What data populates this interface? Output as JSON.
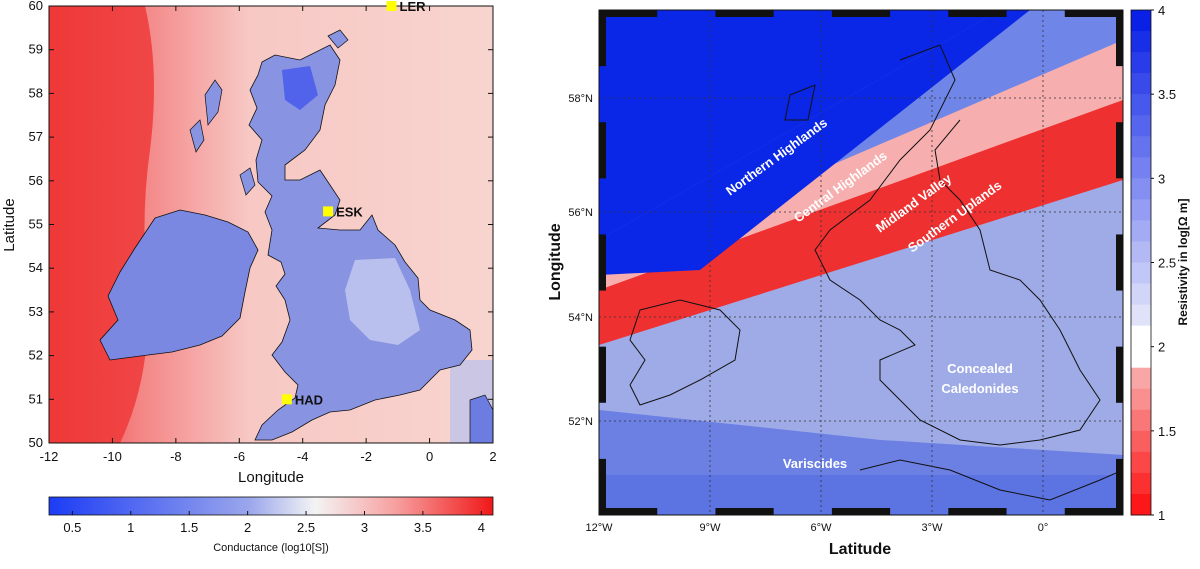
{
  "left_map": {
    "lat_ticks": [
      "60",
      "59",
      "58",
      "57",
      "56",
      "55",
      "54",
      "53",
      "52",
      "51",
      "50"
    ],
    "lon_ticks": [
      "-12",
      "-10",
      "-8",
      "-6",
      "-4",
      "-2",
      "0",
      "2"
    ],
    "ylabel": "Latitude",
    "xlabel": "Longitude",
    "stations": [
      {
        "name": "LER",
        "lon": -1.2,
        "lat": 60.0
      },
      {
        "name": "ESK",
        "lon": -3.2,
        "lat": 55.3
      },
      {
        "name": "HAD",
        "lon": -4.5,
        "lat": 51.0
      }
    ],
    "colorbar": {
      "ticks": [
        "0.5",
        "1",
        "1.5",
        "2",
        "2.5",
        "3",
        "3.5",
        "4"
      ],
      "range": [
        0.3,
        4.1
      ],
      "title": "Conductance (log10[S])",
      "low_color": "#1c3cf5",
      "mid_color": "#f4f4f4",
      "high_color": "#f01818"
    }
  },
  "right_map": {
    "x_ticks": [
      "12°W",
      "9°W",
      "6°W",
      "3°W",
      "0°"
    ],
    "y_ticks": [
      "58°N",
      "56°N",
      "54°N",
      "52°N"
    ],
    "xlabel": "Latitude",
    "ylabel": "Longitude",
    "regions": [
      "Northern Highlands",
      "Central Highlands",
      "Midland Valley",
      "Southern Uplands",
      "Concealed",
      "Caledonides",
      "Variscides"
    ],
    "colorbar": {
      "ticks": [
        "4",
        "3.5",
        "3",
        "2.5",
        "2",
        "1.5",
        "1"
      ],
      "range": [
        1,
        4
      ],
      "title": "Resistivity in log[Ω m]"
    },
    "colors": {
      "northern_highlands": "#0a26e6",
      "central_highlands": "#6f86e8",
      "midland_valley": "#f6aeae",
      "southern_uplands": "#ef3030",
      "caledonides": "#9fabe6",
      "variscides": "#5c73e2"
    }
  }
}
